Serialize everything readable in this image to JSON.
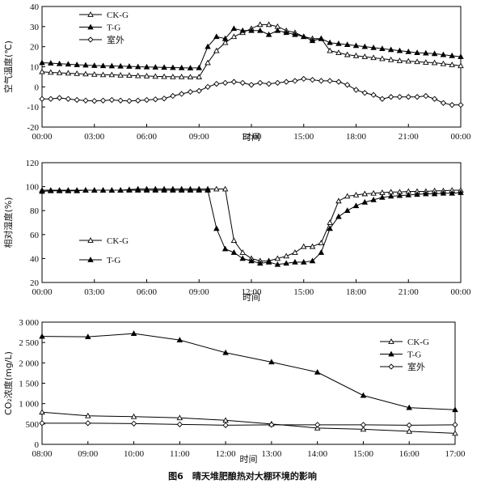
{
  "caption": "图6　晴天堆肥酿热对大棚环境的影响",
  "chart_data": [
    {
      "type": "line",
      "ylabel": "空气温度(℃)",
      "xlabel": "时间",
      "ylim": [
        -20,
        40
      ],
      "yticks": [
        "-20",
        "-10",
        "0",
        "10",
        "20",
        "30",
        "40"
      ],
      "xlim": [
        0,
        24
      ],
      "xticks": [
        "00:00",
        "03:00",
        "06:00",
        "09:00",
        "12:00",
        "15:00",
        "18:00",
        "21:00",
        "00:00"
      ],
      "legend_position": "top-left",
      "x": [
        0,
        0.5,
        1,
        1.5,
        2,
        2.5,
        3,
        3.5,
        4,
        4.5,
        5,
        5.5,
        6,
        6.5,
        7,
        7.5,
        8,
        8.5,
        9,
        9.5,
        10,
        10.5,
        11,
        11.5,
        12,
        12.5,
        13,
        13.5,
        14,
        14.5,
        15,
        15.5,
        16,
        16.5,
        17,
        17.5,
        18,
        18.5,
        19,
        19.5,
        20,
        20.5,
        21,
        21.5,
        22,
        22.5,
        23,
        23.5,
        24
      ],
      "series": [
        {
          "name": "CK-G",
          "marker": "open-triangle",
          "values": [
            7.5,
            7.2,
            7,
            6.8,
            6.6,
            6.4,
            6.2,
            6,
            6,
            5.8,
            5.7,
            5.5,
            5.4,
            5.2,
            5.1,
            5,
            5,
            4.9,
            4.9,
            12,
            18,
            22,
            25,
            27,
            29,
            31,
            31,
            30,
            28,
            27,
            25,
            24,
            24,
            18,
            17,
            16,
            15.5,
            15,
            14.5,
            14,
            13.5,
            13,
            12.8,
            12.5,
            12.2,
            12,
            11.5,
            11,
            10.5
          ]
        },
        {
          "name": "T-G",
          "marker": "filled-triangle",
          "values": [
            12,
            11.8,
            11.5,
            11.3,
            11,
            10.8,
            10.6,
            10.5,
            10.4,
            10.3,
            10.2,
            10,
            9.9,
            9.8,
            9.7,
            9.6,
            9.5,
            9.4,
            9.5,
            20,
            25,
            24,
            29,
            28,
            28,
            28,
            26,
            28,
            27,
            26,
            25,
            23,
            24,
            22,
            21.5,
            21,
            20.5,
            20,
            19.5,
            19,
            18.5,
            18,
            17.5,
            17,
            16.8,
            16.5,
            16,
            15.5,
            15
          ]
        },
        {
          "name": "室外",
          "marker": "open-diamond",
          "values": [
            -6,
            -6,
            -5.5,
            -6,
            -6.5,
            -6.8,
            -7,
            -6.8,
            -6.5,
            -6.8,
            -7,
            -6.8,
            -6.5,
            -6.2,
            -5.8,
            -4.5,
            -3.5,
            -2.5,
            -2,
            0,
            1.5,
            2,
            2.5,
            2,
            1,
            2,
            1.5,
            2,
            2.5,
            3,
            4,
            3.5,
            3,
            3,
            2.5,
            1,
            -1.5,
            -3,
            -4,
            -6,
            -5,
            -5,
            -5,
            -5,
            -4.5,
            -6,
            -8,
            -9,
            -9
          ]
        }
      ]
    },
    {
      "type": "line",
      "ylabel": "相对湿度(%)",
      "xlabel": "时间",
      "ylim": [
        20,
        120
      ],
      "yticks": [
        "20",
        "40",
        "60",
        "80",
        "100",
        "120"
      ],
      "xlim": [
        0,
        24
      ],
      "xticks": [
        "00:00",
        "03:00",
        "06:00",
        "09:00",
        "12:00",
        "15:00",
        "18:00",
        "21:00",
        "00:00"
      ],
      "legend_position": "middle-left",
      "x": [
        0,
        0.5,
        1,
        1.5,
        2,
        2.5,
        3,
        3.5,
        4,
        4.5,
        5,
        5.5,
        6,
        6.5,
        7,
        7.5,
        8,
        8.5,
        9,
        9.5,
        10,
        10.5,
        11,
        11.5,
        12,
        12.5,
        13,
        13.5,
        14,
        14.5,
        15,
        15.5,
        16,
        16.5,
        17,
        17.5,
        18,
        18.5,
        19,
        19.5,
        20,
        20.5,
        21,
        21.5,
        22,
        22.5,
        23,
        23.5,
        24
      ],
      "series": [
        {
          "name": "CK-G",
          "marker": "open-triangle",
          "values": [
            97,
            97,
            97,
            97,
            97,
            97,
            97,
            97,
            97,
            97,
            97.5,
            98,
            98,
            98,
            98,
            98,
            98,
            98,
            98,
            98,
            98,
            98,
            55,
            45,
            40,
            38,
            38,
            40,
            42,
            45,
            50,
            50,
            53,
            70,
            88,
            92,
            93,
            94,
            94.5,
            95,
            95.5,
            95.5,
            96,
            96,
            96,
            96.5,
            96.5,
            97,
            97
          ]
        },
        {
          "name": "T-G",
          "marker": "filled-triangle",
          "values": [
            96,
            96.5,
            96.5,
            96.5,
            96.5,
            97,
            97,
            97,
            97,
            97,
            97,
            97,
            97,
            97,
            97,
            97,
            97,
            97,
            97,
            97,
            65,
            48,
            45,
            40,
            38,
            36,
            37,
            35,
            36,
            37,
            37,
            38,
            45,
            65,
            75,
            80,
            84,
            87,
            89,
            91,
            92,
            92.5,
            93,
            93.5,
            94,
            94,
            94.5,
            94.5,
            95
          ]
        }
      ]
    },
    {
      "type": "line",
      "ylabel": "CO₂浓度(mg/L)",
      "xlabel": "时间",
      "ylim": [
        0,
        3000
      ],
      "yticks": [
        "0",
        "500",
        "1 000",
        "1 500",
        "2 000",
        "2 500",
        "3 000"
      ],
      "xlim": [
        8,
        17
      ],
      "xticks": [
        "08:00",
        "09:00",
        "10:00",
        "11:00",
        "12:00",
        "13:00",
        "14:00",
        "15:00",
        "16:00",
        "17:00"
      ],
      "legend_position": "top-right",
      "x": [
        8,
        9,
        10,
        11,
        12,
        13,
        14,
        15,
        16,
        17
      ],
      "series": [
        {
          "name": "CK-G",
          "marker": "open-triangle",
          "values": [
            790,
            700,
            680,
            650,
            590,
            500,
            400,
            370,
            320,
            270
          ]
        },
        {
          "name": "T-G",
          "marker": "filled-triangle",
          "values": [
            2650,
            2640,
            2720,
            2560,
            2250,
            2020,
            1770,
            1200,
            900,
            850
          ]
        },
        {
          "name": "室外",
          "marker": "open-diamond",
          "values": [
            520,
            520,
            510,
            490,
            470,
            480,
            480,
            480,
            470,
            480
          ]
        }
      ]
    }
  ]
}
